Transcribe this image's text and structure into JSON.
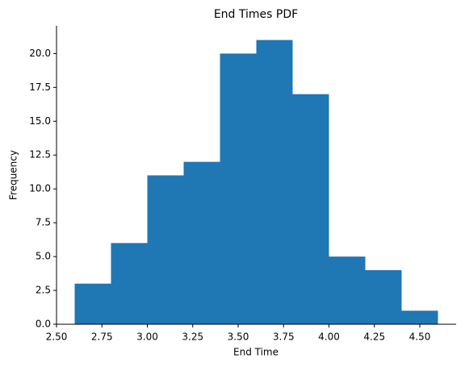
{
  "chart_data": {
    "type": "histogram",
    "title": "End Times PDF",
    "x_label": "End Time",
    "y_label": "Frequency",
    "bins": [
      2.6,
      2.8,
      3.0,
      3.2,
      3.4,
      3.6,
      3.8,
      4.0,
      4.2,
      4.4,
      4.6
    ],
    "values": [
      3,
      6,
      11,
      12,
      20,
      21,
      17,
      5,
      4,
      1
    ],
    "color": "#1f77b4",
    "xlim": [
      2.5,
      4.7
    ],
    "ylim": [
      0,
      22.05
    ],
    "xticks": [
      {
        "value": 2.5,
        "label": "2.50"
      },
      {
        "value": 2.75,
        "label": "2.75"
      },
      {
        "value": 3.0,
        "label": "3.00"
      },
      {
        "value": 3.25,
        "label": "3.25"
      },
      {
        "value": 3.5,
        "label": "3.50"
      },
      {
        "value": 3.75,
        "label": "3.75"
      },
      {
        "value": 4.0,
        "label": "4.00"
      },
      {
        "value": 4.25,
        "label": "4.25"
      },
      {
        "value": 4.5,
        "label": "4.50"
      }
    ],
    "yticks": [
      {
        "value": 0,
        "label": "0.0"
      },
      {
        "value": 2.5,
        "label": "2.5"
      },
      {
        "value": 5,
        "label": "5.0"
      },
      {
        "value": 7.5,
        "label": "7.5"
      },
      {
        "value": 10,
        "label": "10.0"
      },
      {
        "value": 12.5,
        "label": "12.5"
      },
      {
        "value": 15,
        "label": "15.0"
      },
      {
        "value": 17.5,
        "label": "17.5"
      },
      {
        "value": 20,
        "label": "20.0"
      }
    ]
  }
}
